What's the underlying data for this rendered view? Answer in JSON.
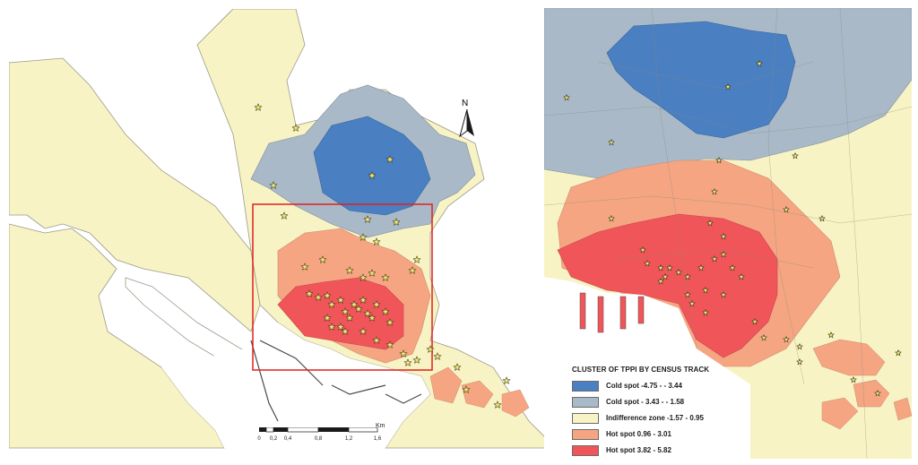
{
  "legend": {
    "title": "CLUSTER OF TPPI BY CENSUS TRACK",
    "items": [
      {
        "label": "Cold spot -4.75 - - 3.44",
        "color": "#4a7fc1"
      },
      {
        "label": "Cold spot - 3.43 - - 1.58",
        "color": "#a9b9c7"
      },
      {
        "label": "Indifference zone -1.57 - 0.95",
        "color": "#f7f3c4"
      },
      {
        "label": "Hot spot 0.96 - 3.01",
        "color": "#f5a582"
      },
      {
        "label": "Hot spot 3.82 - 5.82",
        "color": "#f0555a"
      }
    ]
  },
  "north_arrow": {
    "label": "N"
  },
  "scale_bar": {
    "unit": "Km",
    "ticks": [
      "0",
      "0,2",
      "0,4",
      "0,8",
      "1,2",
      "1,6"
    ]
  },
  "colors": {
    "sea": "#ffffff",
    "land": "#f7f3c4",
    "border": "#9a9a8a",
    "inset_frame": "#e02020",
    "star": "#f4e56a"
  }
}
